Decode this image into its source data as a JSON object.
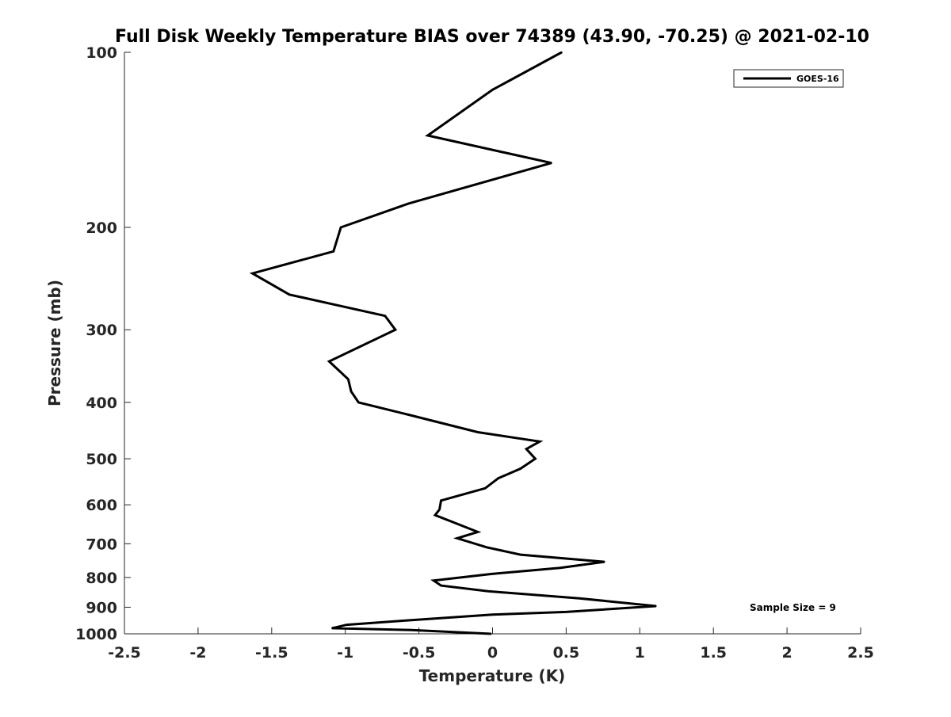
{
  "chart_data": {
    "type": "line",
    "title": "Full Disk Weekly Temperature BIAS over 74389 (43.90, -70.25) @ 2021-02-10",
    "xlabel": "Temperature (K)",
    "ylabel": "Pressure (mb)",
    "xlim": [
      -2.5,
      2.5
    ],
    "ylim": [
      100,
      1000
    ],
    "y_scale": "log",
    "y_reversed": true,
    "grid": false,
    "legend_position": "top-right",
    "x_ticks": [
      -2.5,
      -2,
      -1.5,
      -1,
      -0.5,
      0,
      0.5,
      1,
      1.5,
      2,
      2.5
    ],
    "x_tick_labels": [
      "-2.5",
      "-2",
      "-1.5",
      "-1",
      "-0.5",
      "0",
      "0.5",
      "1",
      "1.5",
      "2",
      "2.5"
    ],
    "y_ticks": [
      100,
      200,
      300,
      400,
      500,
      600,
      700,
      800,
      900,
      1000
    ],
    "y_tick_labels": [
      "100",
      "200",
      "300",
      "400",
      "500",
      "600",
      "700",
      "800",
      "900",
      "1000"
    ],
    "series": [
      {
        "name": "GOES-16",
        "color": "#000000",
        "points": [
          {
            "x": 0.47,
            "y": 100
          },
          {
            "x": 0.0,
            "y": 116
          },
          {
            "x": -0.44,
            "y": 139
          },
          {
            "x": 0.4,
            "y": 155
          },
          {
            "x": -0.57,
            "y": 182
          },
          {
            "x": -1.03,
            "y": 200
          },
          {
            "x": -1.08,
            "y": 220
          },
          {
            "x": -1.63,
            "y": 240
          },
          {
            "x": -1.38,
            "y": 261
          },
          {
            "x": -0.73,
            "y": 284
          },
          {
            "x": -0.66,
            "y": 300
          },
          {
            "x": -1.11,
            "y": 340
          },
          {
            "x": -0.98,
            "y": 365
          },
          {
            "x": -0.96,
            "y": 383
          },
          {
            "x": -0.91,
            "y": 400
          },
          {
            "x": -0.57,
            "y": 420
          },
          {
            "x": -0.1,
            "y": 450
          },
          {
            "x": 0.32,
            "y": 467
          },
          {
            "x": 0.23,
            "y": 481
          },
          {
            "x": 0.29,
            "y": 500
          },
          {
            "x": 0.19,
            "y": 520
          },
          {
            "x": 0.04,
            "y": 540
          },
          {
            "x": -0.05,
            "y": 562
          },
          {
            "x": -0.35,
            "y": 590
          },
          {
            "x": -0.36,
            "y": 611
          },
          {
            "x": -0.39,
            "y": 625
          },
          {
            "x": -0.1,
            "y": 668
          },
          {
            "x": -0.24,
            "y": 685
          },
          {
            "x": -0.04,
            "y": 710
          },
          {
            "x": 0.19,
            "y": 731
          },
          {
            "x": 0.76,
            "y": 752
          },
          {
            "x": 0.46,
            "y": 770
          },
          {
            "x": -0.01,
            "y": 789
          },
          {
            "x": -0.4,
            "y": 810
          },
          {
            "x": -0.35,
            "y": 826
          },
          {
            "x": -0.03,
            "y": 845
          },
          {
            "x": 0.59,
            "y": 869
          },
          {
            "x": 1.11,
            "y": 896
          },
          {
            "x": 0.5,
            "y": 917
          },
          {
            "x": 0.0,
            "y": 927
          },
          {
            "x": -0.62,
            "y": 950
          },
          {
            "x": -0.99,
            "y": 965
          },
          {
            "x": -1.09,
            "y": 978
          },
          {
            "x": -0.55,
            "y": 985
          },
          {
            "x": -0.01,
            "y": 1000
          }
        ]
      }
    ],
    "annotations": [
      {
        "text": "Sample Size = 9"
      }
    ]
  }
}
